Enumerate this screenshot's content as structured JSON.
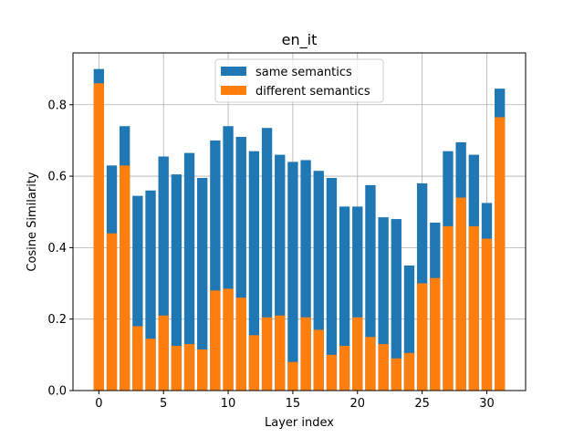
{
  "chart_data": {
    "type": "bar",
    "title": "en_it",
    "xlabel": "Layer index",
    "ylabel": "Cosine Similarity",
    "x": [
      0,
      1,
      2,
      3,
      4,
      5,
      6,
      7,
      8,
      9,
      10,
      11,
      12,
      13,
      14,
      15,
      16,
      17,
      18,
      19,
      20,
      21,
      22,
      23,
      24,
      25,
      26,
      27,
      28,
      29,
      30,
      31
    ],
    "series": [
      {
        "name": "same semantics",
        "color": "#1f77b4",
        "values": [
          0.9,
          0.63,
          0.74,
          0.545,
          0.56,
          0.655,
          0.605,
          0.665,
          0.595,
          0.7,
          0.74,
          0.71,
          0.67,
          0.735,
          0.66,
          0.64,
          0.645,
          0.615,
          0.595,
          0.515,
          0.515,
          0.575,
          0.485,
          0.48,
          0.35,
          0.58,
          0.47,
          0.67,
          0.695,
          0.66,
          0.525,
          0.845
        ]
      },
      {
        "name": "different semantics",
        "color": "#ff7f0e",
        "values": [
          0.86,
          0.44,
          0.63,
          0.18,
          0.145,
          0.21,
          0.125,
          0.13,
          0.115,
          0.28,
          0.285,
          0.26,
          0.155,
          0.205,
          0.21,
          0.08,
          0.205,
          0.17,
          0.1,
          0.125,
          0.205,
          0.15,
          0.13,
          0.09,
          0.105,
          0.3,
          0.315,
          0.46,
          0.54,
          0.46,
          0.425,
          0.765
        ]
      }
    ],
    "xlim": [
      -2.0,
      33.0
    ],
    "ylim": [
      0,
      0.945
    ],
    "xticks": [
      0,
      5,
      10,
      15,
      20,
      25,
      30
    ],
    "xtick_labels": [
      "0",
      "5",
      "10",
      "15",
      "20",
      "25",
      "30"
    ],
    "yticks": [
      0,
      0.2,
      0.4,
      0.6,
      0.8
    ],
    "ytick_labels": [
      "0.0",
      "0.2",
      "0.4",
      "0.6",
      "0.8"
    ],
    "grid": true,
    "legend_position": "top-center"
  }
}
